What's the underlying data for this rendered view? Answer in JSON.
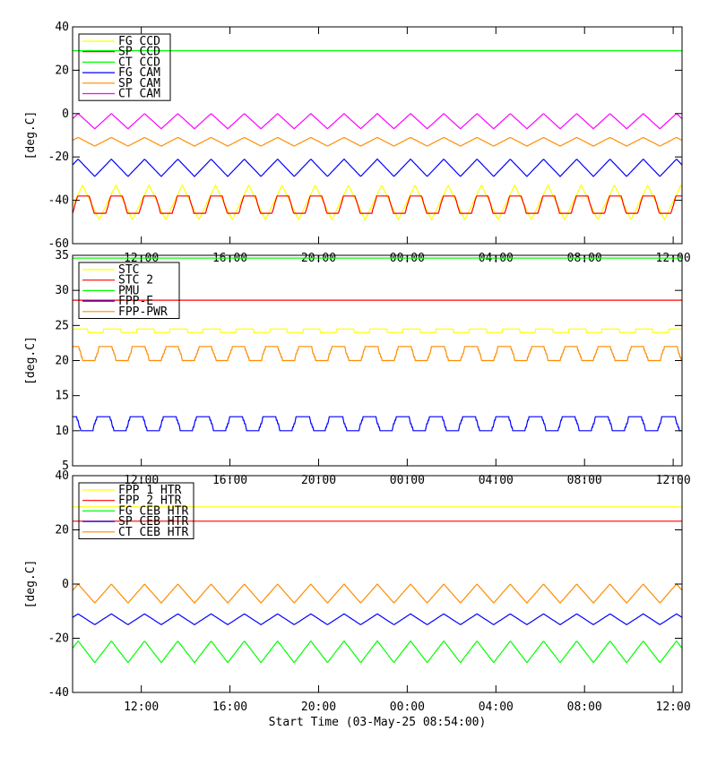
{
  "figure": {
    "start_time_label": "Start Time (03-May-25 08:54:00)",
    "time_axis": {
      "start": "2025-05-03T08:54:00",
      "end": "2025-05-04T12:24:00",
      "tick_labels": [
        "12:00",
        "16:00",
        "20:00",
        "00:00",
        "04:00",
        "08:00",
        "12:00"
      ],
      "tick_times": [
        "2025-05-03T12:00",
        "2025-05-03T16:00",
        "2025-05-03T20:00",
        "2025-05-04T00:00",
        "2025-05-04T04:00",
        "2025-05-04T08:00",
        "2025-05-04T12:00"
      ]
    }
  },
  "chart_data": [
    {
      "type": "line",
      "ylabel": "[deg.C]",
      "ylim": [
        -60,
        40
      ],
      "yticks": [
        40,
        20,
        0,
        -20,
        -40,
        -60
      ],
      "legend_position": "top-left",
      "grid": false,
      "series": [
        {
          "name": "FG CCD",
          "color": "#ffff00",
          "pattern": "triangle",
          "period_hours": 1.5,
          "phase_hours": 0.3,
          "min": -49,
          "max": -33,
          "approx_range": [
            -49,
            -33
          ]
        },
        {
          "name": "SP CCD",
          "color": "#ff0000",
          "pattern": "step",
          "period_hours": 1.5,
          "phase_hours": 0.0,
          "min": -46,
          "max": -38,
          "approx_range": [
            -46,
            -38
          ]
        },
        {
          "name": "CT CCD",
          "color": "#00ff00",
          "pattern": "flat",
          "value": 29,
          "approx_range": [
            28,
            29
          ]
        },
        {
          "name": "FG CAM",
          "color": "#0000ff",
          "pattern": "triangle",
          "period_hours": 1.5,
          "phase_hours": 0.5,
          "min": -29,
          "max": -21,
          "approx_range": [
            -29,
            -21
          ]
        },
        {
          "name": "SP CAM",
          "color": "#ff8c00",
          "pattern": "triangle",
          "period_hours": 1.5,
          "phase_hours": 0.5,
          "min": -15,
          "max": -11,
          "approx_range": [
            -15,
            -11
          ]
        },
        {
          "name": "CT CAM",
          "color": "#ff00ff",
          "pattern": "triangle",
          "period_hours": 1.5,
          "phase_hours": 0.5,
          "min": -7,
          "max": 0,
          "approx_range": [
            -7,
            0
          ]
        }
      ]
    },
    {
      "type": "line",
      "ylabel": "[deg.C]",
      "ylim": [
        5,
        35
      ],
      "yticks": [
        35,
        30,
        25,
        20,
        15,
        10,
        5
      ],
      "legend_position": "top-left",
      "grid": false,
      "series": [
        {
          "name": "STC",
          "color": "#ffff00",
          "pattern": "step",
          "period_hours": 1.5,
          "phase_hours": 0.2,
          "min": 24,
          "max": 24.6,
          "approx_range": [
            24,
            24.6
          ]
        },
        {
          "name": "STC 2",
          "color": "#ff0000",
          "pattern": "flat",
          "value": 28.6,
          "approx_range": [
            28.3,
            28.8
          ]
        },
        {
          "name": "PMU",
          "color": "#00ff00",
          "pattern": "flat",
          "value": 34.6,
          "approx_range": [
            34.4,
            35
          ]
        },
        {
          "name": "FPP-E",
          "color": "#0000ff",
          "pattern": "step",
          "period_hours": 1.5,
          "phase_hours": 0.6,
          "min": 10,
          "max": 12.2,
          "approx_range": [
            10,
            13.5
          ]
        },
        {
          "name": "FPP-PWR",
          "color": "#ff8c00",
          "pattern": "step",
          "period_hours": 1.5,
          "phase_hours": 0.5,
          "min": 20,
          "max": 22.1,
          "approx_range": [
            20,
            22.5
          ]
        }
      ]
    },
    {
      "type": "line",
      "ylabel": "[deg.C]",
      "ylim": [
        -40,
        40
      ],
      "yticks": [
        40,
        20,
        0,
        -20,
        -40
      ],
      "legend_position": "top-left",
      "grid": false,
      "series": [
        {
          "name": "FPP 1 HTR",
          "color": "#ffff00",
          "pattern": "flat",
          "value": 28.5,
          "approx_range": [
            28,
            29
          ]
        },
        {
          "name": "FPP 2 HTR",
          "color": "#ff0000",
          "pattern": "flat",
          "value": 23.2,
          "approx_range": [
            23,
            24
          ]
        },
        {
          "name": "FG CEB HTR",
          "color": "#00ff00",
          "pattern": "triangle",
          "period_hours": 1.5,
          "phase_hours": 0.5,
          "min": -29,
          "max": -21,
          "approx_range": [
            -29,
            -21
          ]
        },
        {
          "name": "SP CEB HTR",
          "color": "#0000ff",
          "pattern": "triangle",
          "period_hours": 1.5,
          "phase_hours": 0.5,
          "min": -15,
          "max": -11,
          "approx_range": [
            -15,
            -11
          ]
        },
        {
          "name": "CT CEB HTR",
          "color": "#ff8c00",
          "pattern": "triangle",
          "period_hours": 1.5,
          "phase_hours": 0.5,
          "min": -7,
          "max": 0,
          "approx_range": [
            -7,
            0
          ]
        }
      ]
    }
  ]
}
